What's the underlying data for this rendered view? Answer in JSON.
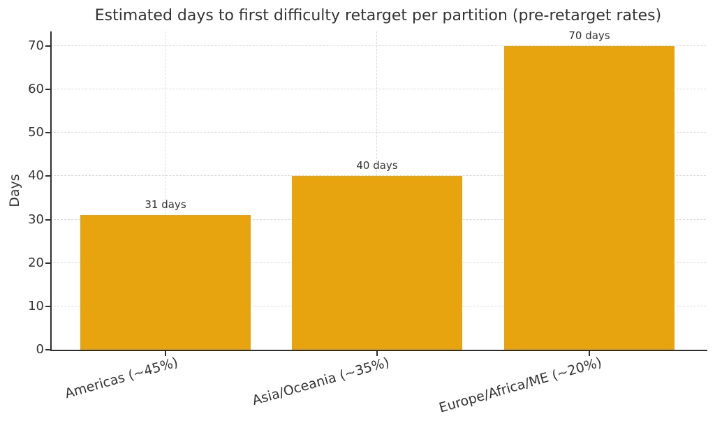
{
  "chart_data": {
    "type": "bar",
    "title": "Estimated days to first difficulty retarget per partition (pre-retarget rates)",
    "ylabel": "Days",
    "xlabel": "",
    "categories": [
      "Americas (~45%)",
      "Asia/Oceania (~35%)",
      "Europe/Africa/ME (~20%)"
    ],
    "values": [
      31,
      40,
      70
    ],
    "bar_labels": [
      "31 days",
      "40 days",
      "70 days"
    ],
    "yticks": [
      0,
      10,
      20,
      30,
      40,
      50,
      60,
      70
    ],
    "ylim": [
      0,
      73.4
    ],
    "grid": true,
    "legend": false,
    "colors": {
      "bar": "#E7A40F",
      "axis": "#2e2e2e",
      "grid": "#d9d9d9",
      "text": "#333333"
    }
  }
}
